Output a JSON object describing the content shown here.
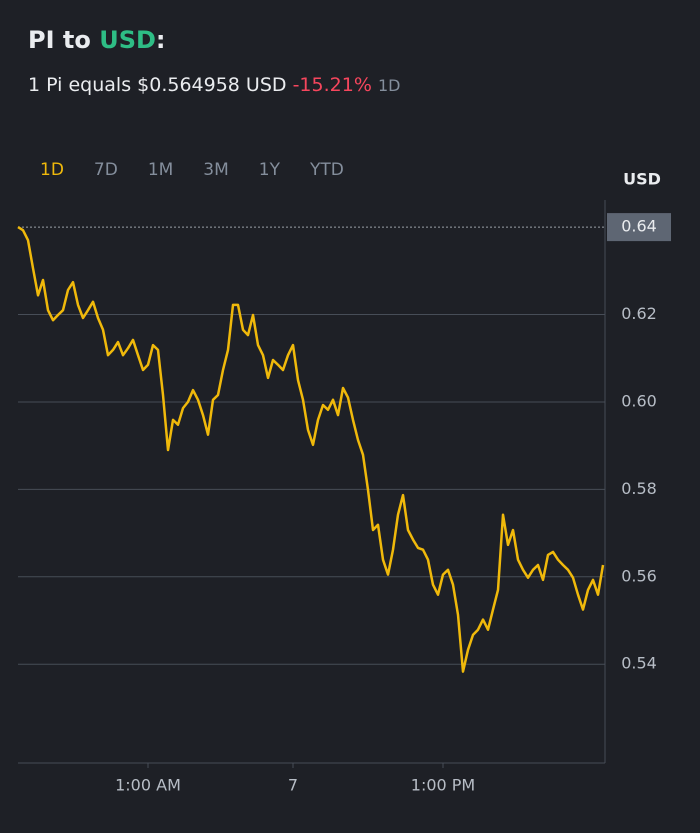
{
  "header": {
    "title": {
      "prefix": "PI to ",
      "quote": "USD",
      "suffix": ":"
    },
    "subtitle": {
      "text": "1 Pi equals $0.564958 USD",
      "change": "-15.21%",
      "period": "1D"
    },
    "tabs": [
      "1D",
      "7D",
      "1M",
      "3M",
      "1Y",
      "YTD"
    ],
    "active_tab": 0
  },
  "chart_data": {
    "type": "line",
    "y_axis_label": "USD",
    "color": "#f0b90b",
    "grid": true,
    "categories": [
      null,
      null,
      null,
      null,
      null,
      null,
      null,
      null,
      null,
      null,
      null,
      null,
      null,
      null,
      null,
      null,
      null,
      null,
      null,
      null,
      null,
      null,
      null,
      null,
      null,
      null,
      "1:00 AM",
      null,
      null,
      null,
      null,
      null,
      null,
      null,
      null,
      null,
      null,
      null,
      null,
      null,
      null,
      null,
      null,
      null,
      null,
      null,
      null,
      null,
      null,
      null,
      null,
      null,
      null,
      null,
      null,
      "7",
      null,
      null,
      null,
      null,
      null,
      null,
      null,
      null,
      null,
      null,
      null,
      null,
      null,
      null,
      null,
      null,
      null,
      null,
      null,
      null,
      null,
      null,
      null,
      null,
      null,
      null,
      null,
      null,
      null,
      "1:00 PM",
      null,
      null,
      null,
      null,
      null,
      null,
      null,
      null,
      null,
      null,
      null,
      null,
      null,
      null,
      null,
      null,
      null,
      null,
      null,
      null,
      null,
      null,
      null,
      null,
      null,
      null,
      null,
      null,
      null,
      null,
      null,
      null
    ],
    "values": [
      0.64,
      0.6393,
      0.637,
      0.6306,
      0.6244,
      0.6279,
      0.621,
      0.6187,
      0.6199,
      0.621,
      0.6256,
      0.6274,
      0.6222,
      0.6192,
      0.621,
      0.6229,
      0.6192,
      0.6165,
      0.6107,
      0.6119,
      0.6137,
      0.6107,
      0.6123,
      0.6142,
      0.6107,
      0.6073,
      0.6085,
      0.613,
      0.6119,
      0.6016,
      0.589,
      0.5959,
      0.5948,
      0.5986,
      0.6,
      0.6027,
      0.6005,
      0.597,
      0.5925,
      0.6005,
      0.6016,
      0.6073,
      0.6119,
      0.6222,
      0.6222,
      0.6165,
      0.6153,
      0.6199,
      0.613,
      0.6107,
      0.6055,
      0.6096,
      0.6085,
      0.6073,
      0.6107,
      0.613,
      0.605,
      0.6005,
      0.5936,
      0.5902,
      0.5959,
      0.5993,
      0.5982,
      0.6005,
      0.597,
      0.6032,
      0.601,
      0.5959,
      0.5913,
      0.5879,
      0.5799,
      0.5707,
      0.5719,
      0.5639,
      0.5605,
      0.5662,
      0.5742,
      0.5787,
      0.5707,
      0.5685,
      0.5666,
      0.5662,
      0.5639,
      0.5582,
      0.5559,
      0.5605,
      0.5616,
      0.5582,
      0.5513,
      0.5383,
      0.5433,
      0.5467,
      0.5479,
      0.5502,
      0.5479,
      0.5525,
      0.557,
      0.5742,
      0.5673,
      0.5707,
      0.5639,
      0.5616,
      0.5598,
      0.5616,
      0.5627,
      0.5593,
      0.565,
      0.5657,
      0.5639,
      0.5627,
      0.5616,
      0.5598,
      0.5559,
      0.5525,
      0.557,
      0.5593,
      0.5559,
      0.5627
    ],
    "ylim": [
      0.5174,
      0.6462
    ],
    "yticks": [
      {
        "value": 0.54,
        "label": "0.54"
      },
      {
        "value": 0.56,
        "label": "0.56"
      },
      {
        "value": 0.58,
        "label": "0.58"
      },
      {
        "value": 0.6,
        "label": "0.60"
      },
      {
        "value": 0.62,
        "label": "0.62"
      },
      {
        "value": 0.64,
        "label": "0.64"
      }
    ]
  }
}
